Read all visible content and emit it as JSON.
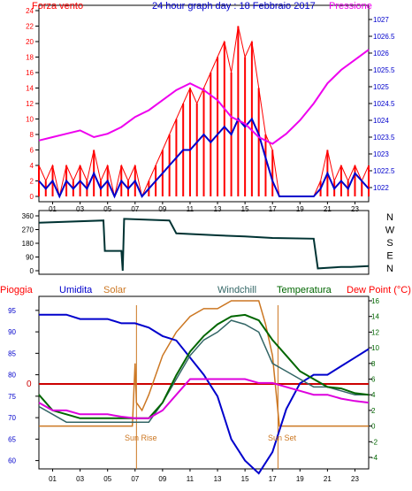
{
  "colors": {
    "wind": "#ff0000",
    "wind_avg": "#0000cc",
    "pressure": "#ee00ee",
    "direction": "#003333",
    "rain": "#ff0000",
    "humidity": "#0000cc",
    "solar": "#cc7722",
    "windchill": "#336666",
    "temperature": "#006600",
    "dewpoint": "#dd00dd",
    "frame": "#000000"
  },
  "chart_data": [
    {
      "type": "line",
      "title": "24 hour graph day : 18 Febbraio 2017",
      "left_label": "Forza vento",
      "right_label": "Pressione",
      "x_ticks": [
        "01",
        "03",
        "05",
        "07",
        "09",
        "11",
        "13",
        "15",
        "17",
        "19",
        "21",
        "23"
      ],
      "x_range": [
        0,
        24
      ],
      "y_left": {
        "range": [
          0,
          24
        ],
        "ticks": [
          "0",
          "2",
          "4",
          "6",
          "8",
          "10",
          "12",
          "14",
          "16",
          "18",
          "20",
          "22",
          "24"
        ]
      },
      "y_right": {
        "range": [
          1032.5,
          1027
        ],
        "ticks": [
          "1027",
          "1026.5",
          "1026",
          "1025.5",
          "1025",
          "1024.5",
          "1024",
          "1023.5",
          "1023",
          "1022.5",
          "1022"
        ]
      },
      "series": [
        {
          "x": [
            0,
            0.5,
            1,
            1.5,
            2,
            2.5,
            3,
            3.5,
            4,
            4.5,
            5,
            5.5,
            6,
            6.5,
            7,
            7.5,
            8,
            8.5,
            9,
            9.5,
            10,
            10.5,
            11,
            11.5,
            12,
            12.5,
            13,
            13.5,
            14,
            14.5,
            15,
            15.5,
            16,
            16.5,
            17,
            17.5,
            18,
            18.5,
            19,
            19.5,
            20,
            20.5,
            21,
            21.5,
            22,
            22.5,
            23,
            23.5,
            24
          ],
          "values": [
            4,
            2,
            4,
            0,
            4,
            2,
            4,
            2,
            6,
            2,
            4,
            0,
            4,
            2,
            4,
            0,
            2,
            4,
            6,
            8,
            10,
            12,
            14,
            12,
            14,
            16,
            18,
            20,
            16,
            22,
            18,
            20,
            14,
            8,
            6,
            0,
            0,
            0,
            0,
            0,
            0,
            2,
            6,
            2,
            4,
            2,
            4,
            2,
            4
          ]
        },
        {
          "x": [
            0,
            0.5,
            1,
            1.5,
            2,
            2.5,
            3,
            3.5,
            4,
            4.5,
            5,
            5.5,
            6,
            6.5,
            7,
            7.5,
            8,
            8.5,
            9,
            9.5,
            10,
            10.5,
            11,
            11.5,
            12,
            12.5,
            13,
            13.5,
            14,
            14.5,
            15,
            15.5,
            16,
            16.5,
            17,
            17.5,
            18,
            18.5,
            19,
            19.5,
            20,
            20.5,
            21,
            21.5,
            22,
            22.5,
            23,
            23.5,
            24
          ],
          "values": [
            2,
            1,
            2,
            0,
            2,
            1,
            2,
            1,
            3,
            1,
            2,
            0,
            2,
            1,
            2,
            0,
            1,
            2,
            3,
            4,
            5,
            6,
            6,
            7,
            8,
            7,
            8,
            9,
            8,
            10,
            9,
            10,
            8,
            5,
            2,
            0,
            0,
            0,
            0,
            0,
            0,
            1,
            3,
            1,
            2,
            1,
            3,
            2,
            1
          ]
        },
        {
          "x": [
            0,
            1,
            2,
            3,
            4,
            5,
            6,
            7,
            8,
            9,
            10,
            11,
            12,
            13,
            14,
            15,
            16,
            17,
            18,
            19,
            20,
            21,
            22,
            23,
            24
          ],
          "values": [
            1023.4,
            1023.5,
            1023.6,
            1023.7,
            1023.5,
            1023.6,
            1023.8,
            1024.1,
            1024.3,
            1024.6,
            1024.9,
            1025.1,
            1024.9,
            1024.6,
            1024.1,
            1023.9,
            1023.5,
            1023.3,
            1023.6,
            1024.0,
            1024.5,
            1025.1,
            1025.5,
            1025.8,
            1026.1
          ]
        }
      ]
    },
    {
      "type": "line",
      "x_range": [
        0,
        24
      ],
      "y_ticks": [
        "360",
        "270",
        "180",
        "90",
        "0"
      ],
      "y_range": [
        0,
        360
      ],
      "right_labels": [
        "N",
        "W",
        "S",
        "E",
        "N"
      ],
      "series": [
        {
          "x": [
            0,
            4.7,
            4.8,
            5.3,
            6.0,
            6.1,
            6.2,
            9.5,
            10.0,
            13,
            15,
            17,
            20,
            20.3,
            22,
            22.7,
            24
          ],
          "values": [
            315,
            330,
            130,
            130,
            130,
            0,
            340,
            330,
            245,
            232,
            225,
            215,
            210,
            15,
            25,
            25,
            30
          ]
        }
      ]
    },
    {
      "type": "line",
      "legend": [
        "Pioggia",
        "Umidita",
        "Solar",
        "Windchill",
        "Temperatura",
        "Dew Point (°C)"
      ],
      "x_ticks": [
        "01",
        "03",
        "05",
        "07",
        "09",
        "11",
        "13",
        "15",
        "17",
        "19",
        "21",
        "23"
      ],
      "x_range": [
        0,
        24
      ],
      "y_left": {
        "range": [
          56,
          96
        ],
        "ticks": [
          "95",
          "90",
          "85",
          "80",
          "75",
          "70",
          "65",
          "60"
        ]
      },
      "y_right": {
        "range": [
          -5,
          16
        ],
        "ticks": [
          "16",
          "14",
          "12",
          "10",
          "8",
          "6",
          "4",
          "2",
          "0",
          "-2",
          "-4"
        ]
      },
      "rain_zero_label": "0",
      "annotations": [
        "Sun Rise",
        "Sun Set"
      ],
      "series": [
        {
          "x": [
            0,
            1,
            2,
            3,
            4,
            5,
            6,
            7,
            8,
            9,
            10,
            11,
            12,
            13,
            14,
            15,
            16,
            17,
            18,
            19,
            20,
            21,
            22,
            23,
            24
          ],
          "values": [
            94,
            94,
            94,
            93,
            93,
            93,
            92,
            92,
            91,
            89,
            88,
            84,
            80,
            75,
            65,
            60,
            57,
            62,
            72,
            78,
            80,
            80,
            82,
            84,
            86
          ]
        },
        {
          "x": [
            0,
            6.8,
            7,
            7.1,
            7.5,
            8,
            9,
            10,
            11,
            12,
            13,
            14,
            15,
            16,
            16.5,
            17,
            17.5,
            24
          ],
          "values": [
            0,
            0,
            8,
            3,
            2,
            4,
            9,
            12,
            14,
            15,
            15,
            16,
            16,
            16,
            13,
            9,
            0,
            0
          ]
        },
        {
          "x": [
            0,
            1,
            2,
            3,
            4,
            5,
            6,
            7,
            8,
            9,
            10,
            11,
            12,
            13,
            14,
            15,
            16,
            17,
            18,
            19,
            20,
            21,
            22,
            23,
            24
          ],
          "values": [
            2.5,
            1.5,
            0.5,
            0.5,
            0.5,
            0.5,
            0.5,
            0.5,
            0.5,
            3,
            6,
            9,
            11,
            12,
            13.5,
            13,
            12,
            8,
            7,
            6,
            5,
            5,
            4.5,
            4,
            4
          ]
        },
        {
          "x": [
            0,
            1,
            2,
            3,
            4,
            5,
            6,
            7,
            8,
            9,
            10,
            11,
            12,
            13,
            14,
            15,
            16,
            17,
            18,
            19,
            20,
            21,
            22,
            23,
            24
          ],
          "values": [
            4,
            2,
            1.5,
            1,
            1,
            1,
            1,
            1,
            1,
            3,
            6.5,
            9.5,
            11.5,
            13,
            14,
            14.2,
            13.5,
            11,
            9,
            7,
            6,
            5,
            4.8,
            4.2,
            4
          ]
        },
        {
          "x": [
            0,
            1,
            2,
            3,
            4,
            5,
            6,
            7,
            8,
            9,
            10,
            11,
            12,
            13,
            14,
            15,
            16,
            17,
            18,
            19,
            20,
            21,
            22,
            23,
            24
          ],
          "values": [
            3,
            2,
            2,
            1.5,
            1.5,
            1.5,
            1.2,
            1,
            1,
            2,
            4,
            6,
            6,
            6,
            6,
            6,
            5.5,
            5.5,
            5,
            4.5,
            4,
            4,
            3.5,
            3.2,
            3
          ]
        }
      ]
    }
  ]
}
